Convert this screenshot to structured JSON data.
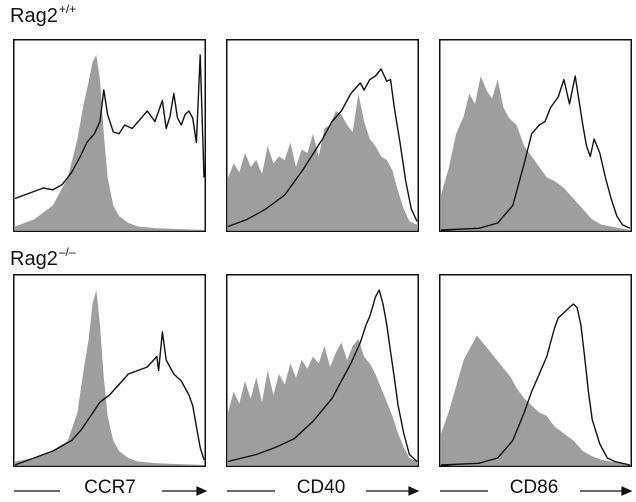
{
  "rows": [
    {
      "label": "Rag2",
      "superscript": "+/+"
    },
    {
      "label": "Rag2",
      "superscript": "–/–"
    }
  ],
  "columns": [
    {
      "label": "CCR7"
    },
    {
      "label": "CD40"
    },
    {
      "label": "CD86"
    }
  ],
  "colors": {
    "filled": "#9e9e9e",
    "line": "#111111",
    "frame": "#111111"
  },
  "chart_data": [
    {
      "type": "area",
      "row": "Rag2+/+",
      "marker": "CCR7",
      "xlim": [
        0,
        100
      ],
      "ylim": [
        0,
        100
      ],
      "series": [
        {
          "style": "filled",
          "x": [
            0,
            10,
            20,
            28,
            33,
            36,
            39,
            41,
            43,
            45,
            47,
            49,
            52,
            55,
            60,
            65,
            75,
            100
          ],
          "y": [
            2,
            6,
            14,
            30,
            52,
            70,
            85,
            96,
            100,
            86,
            55,
            30,
            14,
            8,
            4,
            2,
            1,
            0
          ]
        },
        {
          "style": "outline",
          "x": [
            0,
            5,
            10,
            15,
            20,
            25,
            30,
            35,
            38,
            42,
            45,
            47,
            49,
            52,
            55,
            58,
            62,
            66,
            70,
            74,
            78,
            80,
            82,
            84,
            86,
            88,
            90,
            92,
            94,
            96,
            98,
            100
          ],
          "y": [
            18,
            20,
            22,
            24,
            23,
            26,
            33,
            43,
            50,
            55,
            62,
            80,
            66,
            56,
            55,
            60,
            58,
            63,
            68,
            62,
            74,
            58,
            65,
            78,
            64,
            60,
            66,
            68,
            64,
            50,
            100,
            30
          ]
        }
      ]
    },
    {
      "type": "area",
      "row": "Rag2+/+",
      "marker": "CD40",
      "xlim": [
        0,
        100
      ],
      "ylim": [
        0,
        100
      ],
      "series": [
        {
          "style": "filled",
          "x": [
            0,
            3,
            6,
            9,
            12,
            15,
            18,
            21,
            24,
            27,
            30,
            33,
            36,
            39,
            42,
            45,
            48,
            51,
            54,
            57,
            60,
            63,
            66,
            69,
            72,
            75,
            78,
            81,
            84,
            87,
            90,
            93,
            96,
            100
          ],
          "y": [
            30,
            38,
            33,
            44,
            36,
            40,
            32,
            48,
            38,
            42,
            40,
            50,
            36,
            46,
            44,
            55,
            42,
            58,
            60,
            68,
            66,
            60,
            56,
            78,
            62,
            52,
            48,
            42,
            40,
            34,
            22,
            12,
            5,
            3
          ]
        },
        {
          "style": "outline",
          "x": [
            0,
            10,
            20,
            30,
            40,
            50,
            55,
            60,
            65,
            70,
            72,
            75,
            78,
            81,
            84,
            86,
            88,
            91,
            94,
            97,
            100
          ],
          "y": [
            2,
            6,
            12,
            20,
            35,
            52,
            62,
            68,
            78,
            84,
            80,
            86,
            88,
            92,
            85,
            86,
            70,
            50,
            28,
            12,
            5
          ]
        }
      ]
    },
    {
      "type": "area",
      "row": "Rag2+/+",
      "marker": "CD86",
      "xlim": [
        0,
        100
      ],
      "ylim": [
        0,
        100
      ],
      "series": [
        {
          "style": "filled",
          "x": [
            0,
            4,
            8,
            12,
            15,
            18,
            21,
            24,
            27,
            30,
            33,
            36,
            40,
            44,
            48,
            52,
            56,
            60,
            65,
            70,
            75,
            80,
            85,
            90,
            95,
            100
          ],
          "y": [
            20,
            35,
            55,
            65,
            78,
            72,
            88,
            80,
            75,
            86,
            70,
            64,
            60,
            48,
            42,
            36,
            30,
            28,
            24,
            18,
            12,
            6,
            3,
            2,
            1,
            0
          ]
        },
        {
          "style": "outline",
          "x": [
            0,
            20,
            30,
            38,
            44,
            48,
            52,
            55,
            58,
            62,
            65,
            68,
            71,
            73,
            75,
            77,
            79,
            81,
            84,
            87,
            90,
            93,
            96,
            100
          ],
          "y": [
            0,
            1,
            4,
            14,
            38,
            55,
            60,
            62,
            70,
            76,
            86,
            72,
            88,
            74,
            60,
            48,
            42,
            52,
            44,
            30,
            18,
            8,
            3,
            1
          ]
        }
      ]
    },
    {
      "type": "area",
      "row": "Rag2–/–",
      "marker": "CCR7",
      "xlim": [
        0,
        100
      ],
      "ylim": [
        0,
        100
      ],
      "series": [
        {
          "style": "filled",
          "x": [
            0,
            10,
            20,
            28,
            33,
            36,
            39,
            41,
            43,
            45,
            47,
            49,
            52,
            55,
            60,
            65,
            75,
            100
          ],
          "y": [
            2,
            4,
            8,
            14,
            30,
            52,
            72,
            92,
            100,
            80,
            50,
            28,
            14,
            8,
            4,
            2,
            1,
            0
          ]
        },
        {
          "style": "outline",
          "x": [
            0,
            10,
            20,
            30,
            35,
            40,
            45,
            50,
            55,
            60,
            65,
            70,
            75,
            76,
            78,
            80,
            82,
            84,
            86,
            88,
            90,
            92,
            94,
            96,
            98,
            100
          ],
          "y": [
            0,
            4,
            8,
            14,
            20,
            28,
            36,
            40,
            46,
            52,
            54,
            56,
            62,
            54,
            76,
            60,
            56,
            52,
            50,
            48,
            44,
            40,
            34,
            22,
            10,
            3
          ]
        }
      ]
    },
    {
      "type": "area",
      "row": "Rag2–/–",
      "marker": "CD40",
      "xlim": [
        0,
        100
      ],
      "ylim": [
        0,
        100
      ],
      "series": [
        {
          "style": "filled",
          "x": [
            0,
            3,
            6,
            9,
            12,
            15,
            18,
            21,
            24,
            27,
            30,
            33,
            36,
            39,
            42,
            45,
            48,
            51,
            54,
            57,
            60,
            63,
            66,
            69,
            72,
            75,
            78,
            81,
            84,
            87,
            90,
            93,
            96,
            100
          ],
          "y": [
            30,
            42,
            35,
            48,
            38,
            50,
            36,
            54,
            40,
            52,
            46,
            58,
            50,
            60,
            55,
            62,
            58,
            68,
            56,
            64,
            70,
            60,
            68,
            72,
            62,
            58,
            52,
            44,
            36,
            28,
            18,
            10,
            4,
            2
          ]
        },
        {
          "style": "outline",
          "x": [
            0,
            15,
            25,
            35,
            45,
            55,
            60,
            65,
            70,
            73,
            75,
            77,
            78,
            80,
            82,
            84,
            86,
            88,
            90,
            93,
            96,
            100
          ],
          "y": [
            2,
            6,
            10,
            15,
            25,
            38,
            48,
            58,
            70,
            80,
            85,
            92,
            96,
            100,
            92,
            80,
            65,
            50,
            34,
            18,
            6,
            2
          ]
        }
      ]
    },
    {
      "type": "area",
      "row": "Rag2–/–",
      "marker": "CD86",
      "xlim": [
        0,
        100
      ],
      "ylim": [
        0,
        100
      ],
      "series": [
        {
          "style": "filled",
          "x": [
            0,
            4,
            8,
            12,
            16,
            19,
            22,
            25,
            28,
            31,
            34,
            37,
            40,
            44,
            48,
            52,
            56,
            60,
            65,
            70,
            75,
            80,
            85,
            90,
            95,
            100
          ],
          "y": [
            18,
            30,
            45,
            60,
            68,
            74,
            70,
            66,
            62,
            58,
            54,
            50,
            44,
            38,
            34,
            30,
            28,
            22,
            18,
            14,
            8,
            5,
            3,
            2,
            1,
            0
          ]
        },
        {
          "style": "outline",
          "x": [
            0,
            20,
            30,
            38,
            44,
            48,
            52,
            56,
            58,
            60,
            62,
            64,
            66,
            68,
            70,
            72,
            74,
            76,
            78,
            80,
            84,
            88,
            92,
            96,
            100
          ],
          "y": [
            0,
            1,
            4,
            14,
            30,
            42,
            52,
            62,
            70,
            78,
            84,
            86,
            88,
            90,
            92,
            90,
            80,
            62,
            42,
            26,
            12,
            4,
            2,
            1,
            0
          ]
        }
      ]
    }
  ]
}
